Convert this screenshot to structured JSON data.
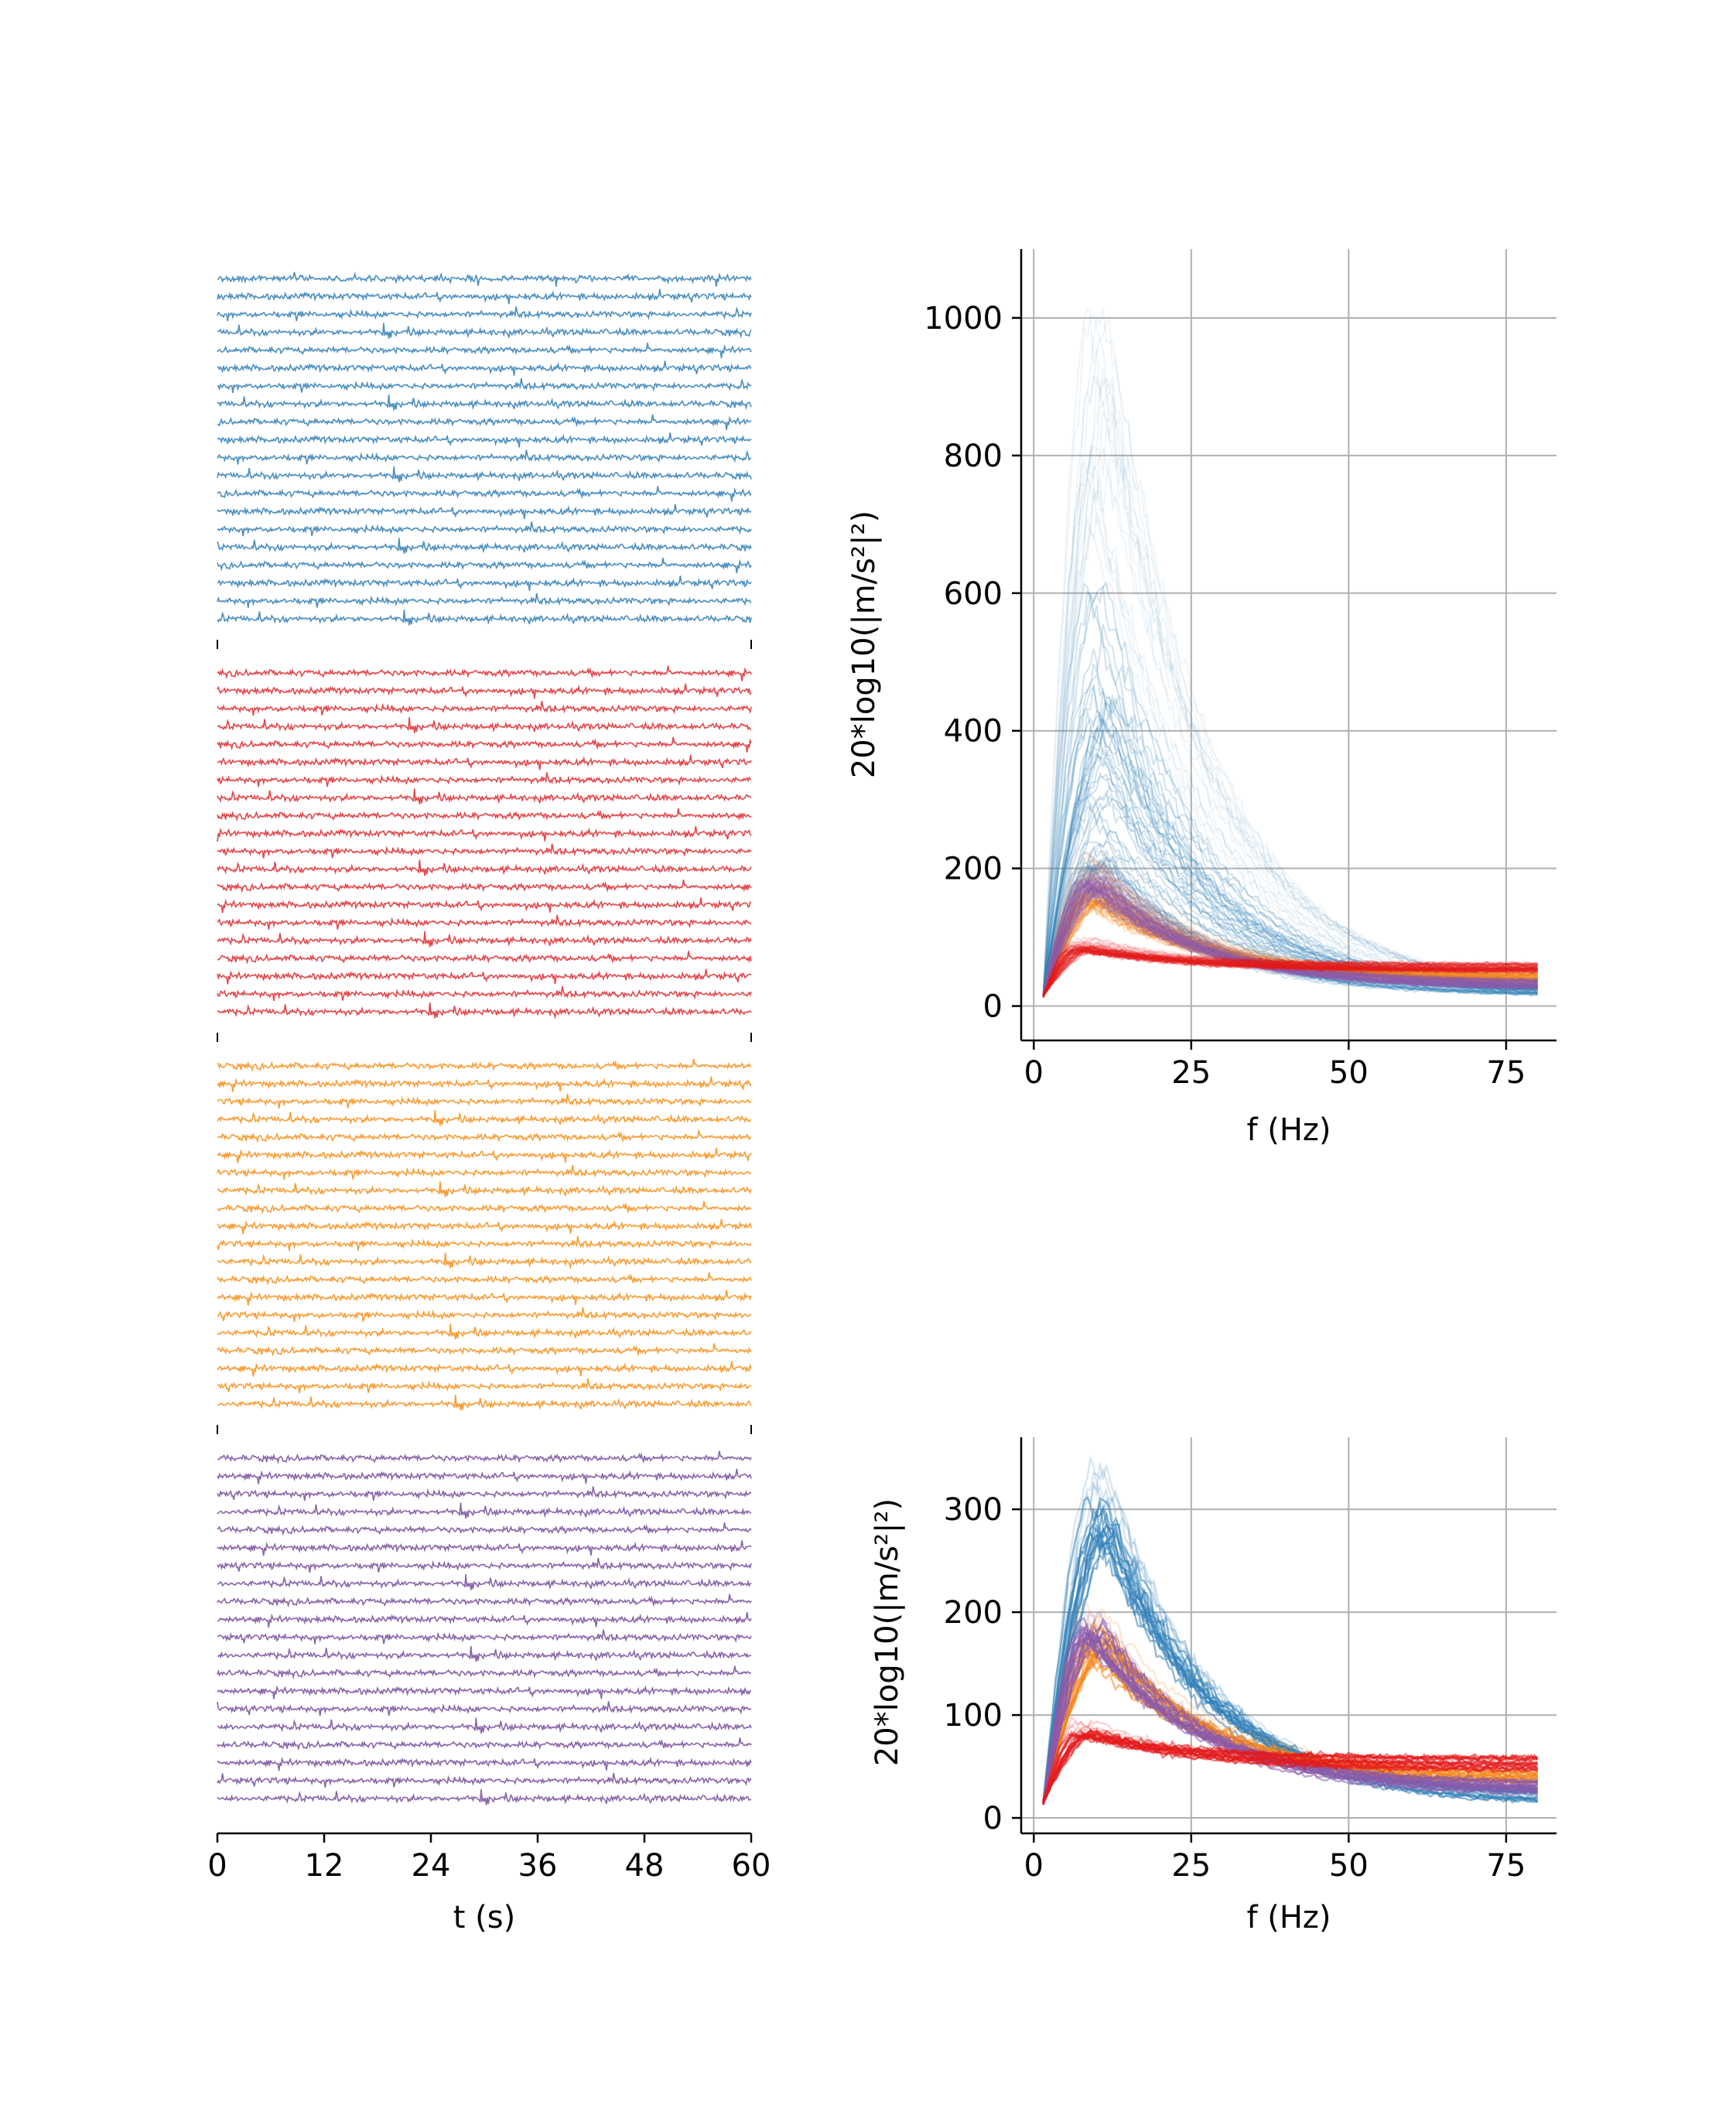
{
  "chart_data": [
    {
      "type": "line",
      "panel": "time-series",
      "xlabel": "t (s)",
      "xlim": [
        0,
        60
      ],
      "xticks": [
        0,
        12,
        24,
        36,
        48,
        60
      ],
      "xtick_labels": [
        "0",
        "12",
        "24",
        "36",
        "48",
        "60"
      ],
      "series": [
        {
          "color": "#4c8fc0",
          "traces": 20
        },
        {
          "color": "#e2474c",
          "traces": 20
        },
        {
          "color": "#f89d36",
          "traces": 20
        },
        {
          "color": "#8a65aa",
          "traces": 20
        }
      ],
      "grid": false
    },
    {
      "type": "line",
      "panel": "spectra-all",
      "xlabel": "f (Hz)",
      "ylabel": "20*log10(|m/s²|²)",
      "xlim": [
        -2,
        83
      ],
      "ylim": [
        -50,
        1100
      ],
      "xticks": [
        0,
        25,
        50,
        75
      ],
      "yticks": [
        0,
        200,
        400,
        600,
        800,
        1000
      ],
      "grid": true,
      "series": [
        {
          "color": "#2f7fb8",
          "peak_f": 11,
          "peak_y": [
            200,
            1050
          ],
          "end_y": 20
        },
        {
          "color": "#f58518",
          "peak_f": 10,
          "peak_y": [
            150,
            230
          ],
          "end_y": 40
        },
        {
          "color": "#8b5aab",
          "peak_f": 10,
          "peak_y": [
            170,
            210
          ],
          "end_y": 30
        },
        {
          "color": "#e41a1c",
          "peak_f": 8,
          "peak_y": [
            80,
            100
          ],
          "end_y": 55
        }
      ]
    },
    {
      "type": "line",
      "panel": "spectra-mean",
      "xlabel": "f (Hz)",
      "ylabel": "20*log10(|m/s²|²)",
      "xlim": [
        -2,
        83
      ],
      "ylim": [
        -15,
        370
      ],
      "xticks": [
        0,
        25,
        50,
        75
      ],
      "yticks": [
        0,
        100,
        200,
        300
      ],
      "grid": true,
      "series": [
        {
          "color": "#2f7fb8",
          "peak_f": 11,
          "peak_y": [
            270,
            350
          ],
          "end_y": 18
        },
        {
          "color": "#f58518",
          "peak_f": 10,
          "peak_y": [
            160,
            210
          ],
          "end_y": 38
        },
        {
          "color": "#8b5aab",
          "peak_f": 10,
          "peak_y": [
            175,
            210
          ],
          "end_y": 28
        },
        {
          "color": "#e41a1c",
          "peak_f": 8,
          "peak_y": [
            80,
            95
          ],
          "end_y": 52
        }
      ]
    }
  ]
}
